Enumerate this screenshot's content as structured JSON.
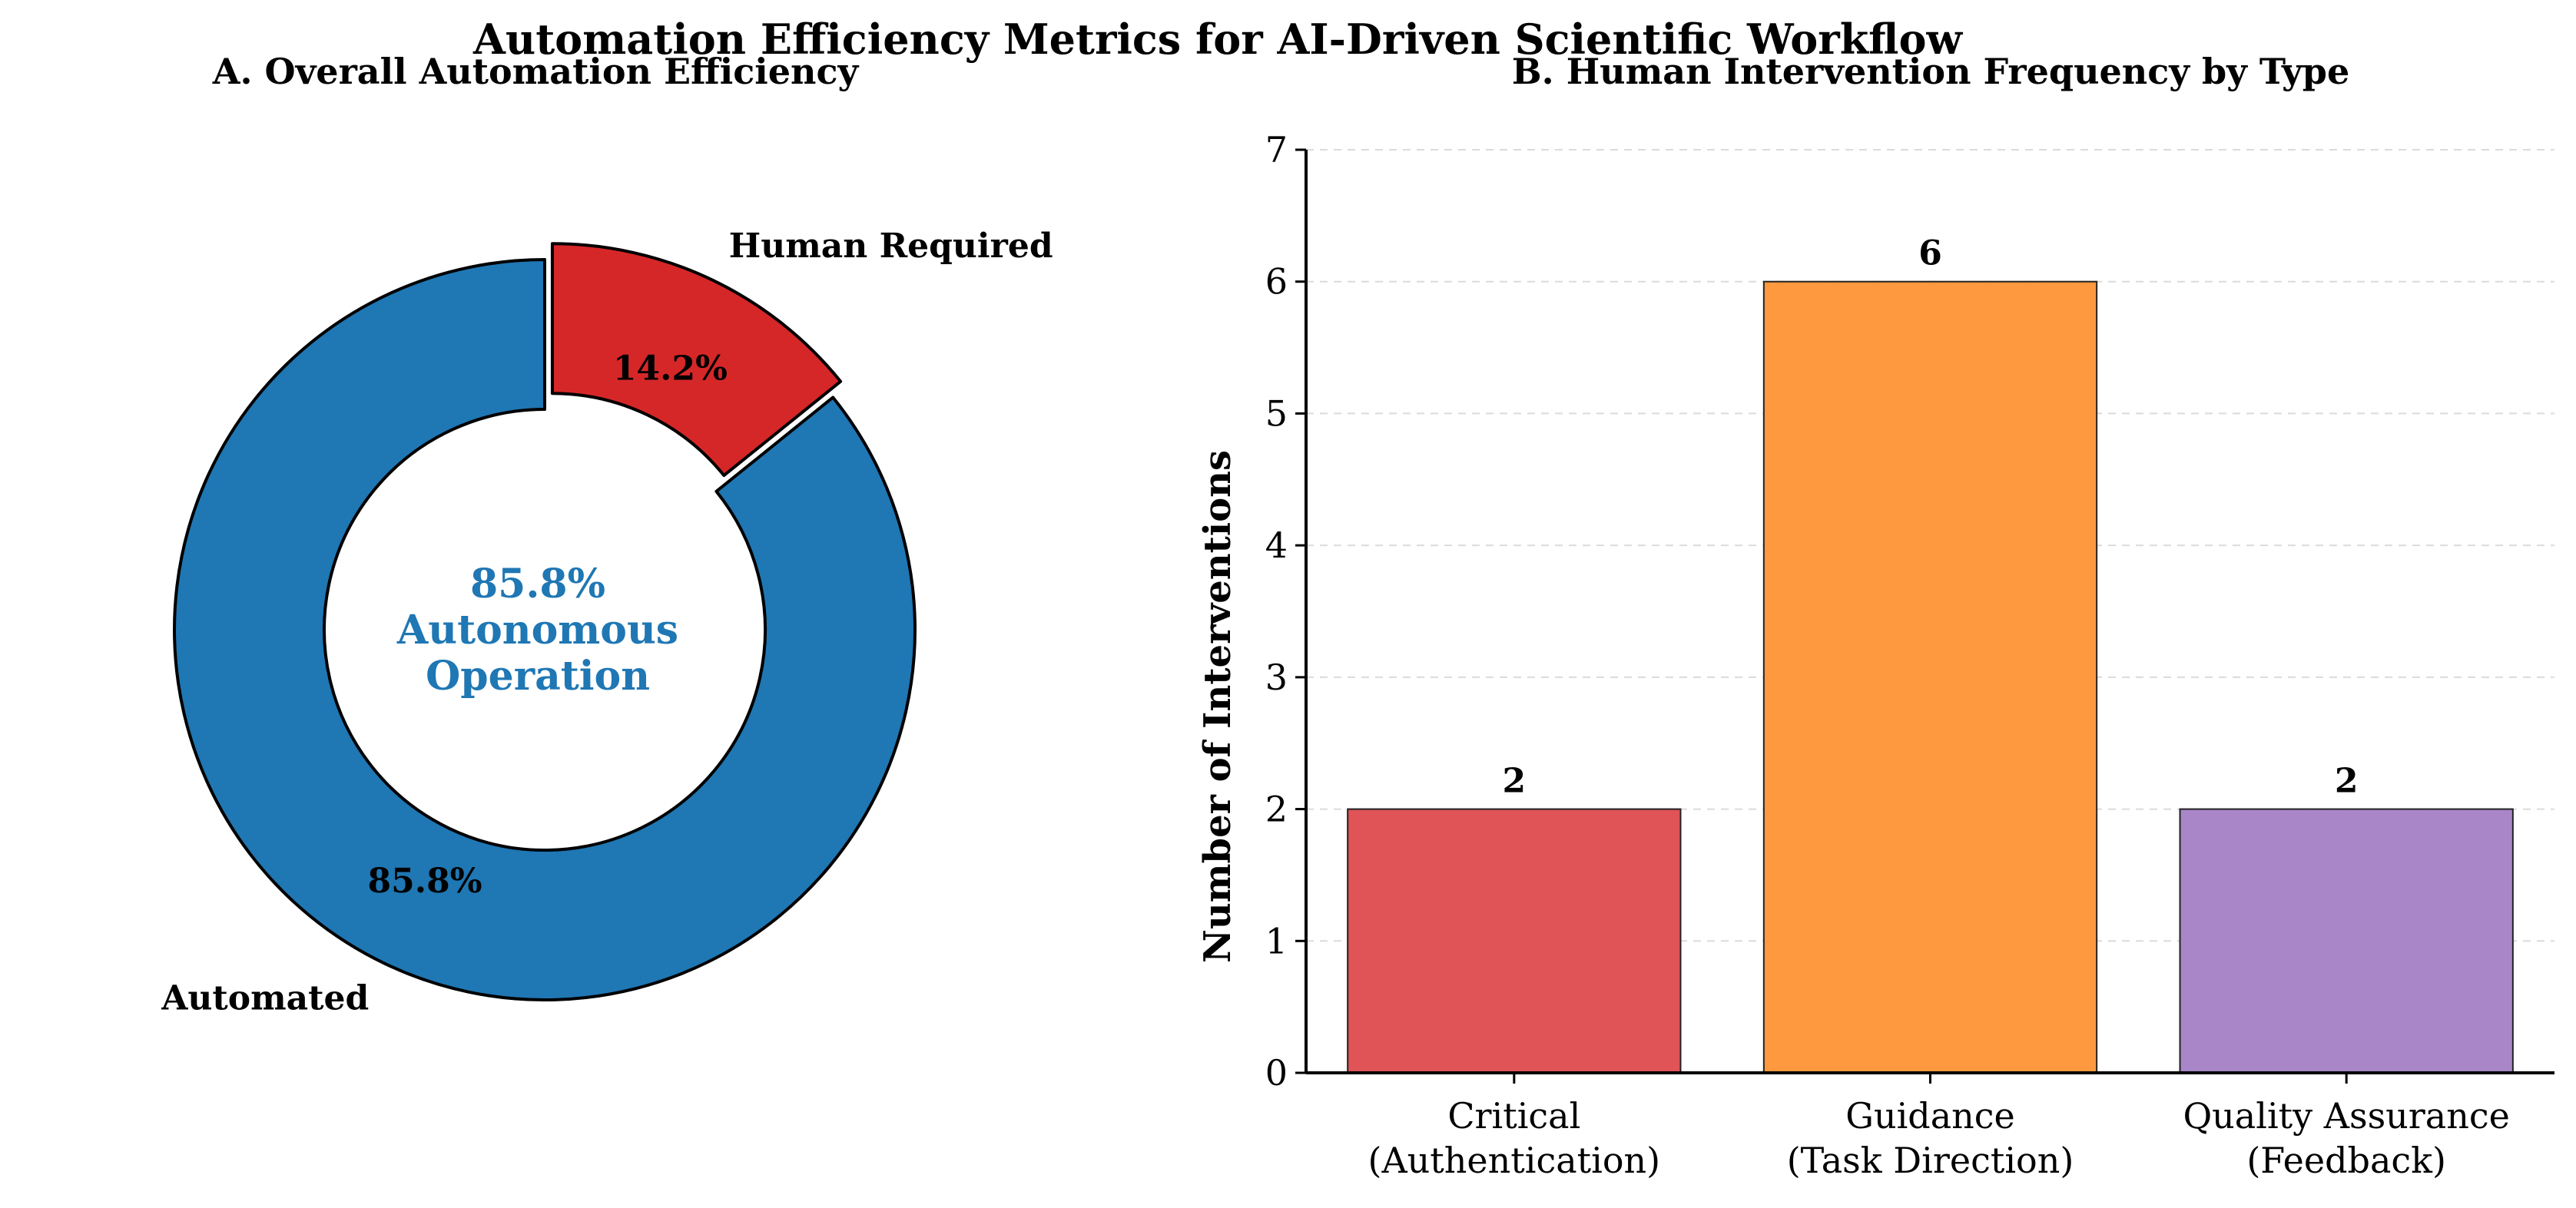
{
  "figure_title": "Automation Efficiency Metrics for AI-Driven Scientific Workflow",
  "chart_data": [
    {
      "type": "pie",
      "style": "donut",
      "title": "A. Overall Automation Efficiency",
      "slices": [
        {
          "label": "Automated",
          "value": 85.8,
          "pct_label": "85.8%",
          "color": "#1f77b4",
          "exploded": false
        },
        {
          "label": "Human Required",
          "value": 14.2,
          "pct_label": "14.2%",
          "color": "#d62728",
          "exploded": true
        }
      ],
      "center_text": {
        "lines": [
          "85.8%",
          "Autonomous",
          "Operation"
        ],
        "color": "#1f77b4"
      }
    },
    {
      "type": "bar",
      "title": "B. Human Intervention Frequency by Type",
      "ylabel": "Number of Interventions",
      "xlabel": "",
      "ylim": [
        0,
        7
      ],
      "yticks": [
        "0",
        "1",
        "2",
        "3",
        "4",
        "5",
        "6",
        "7"
      ],
      "grid": "horizontal-dashed",
      "categories": [
        {
          "line1": "Critical",
          "line2": "(Authentication)"
        },
        {
          "line1": "Guidance",
          "line2": "(Task Direction)"
        },
        {
          "line1": "Quality Assurance",
          "line2": "(Feedback)"
        }
      ],
      "values": [
        2,
        6,
        2
      ],
      "value_labels": [
        "2",
        "6",
        "2"
      ],
      "colors": [
        "#e05356",
        "#ff993f",
        "#a886c7"
      ]
    }
  ]
}
